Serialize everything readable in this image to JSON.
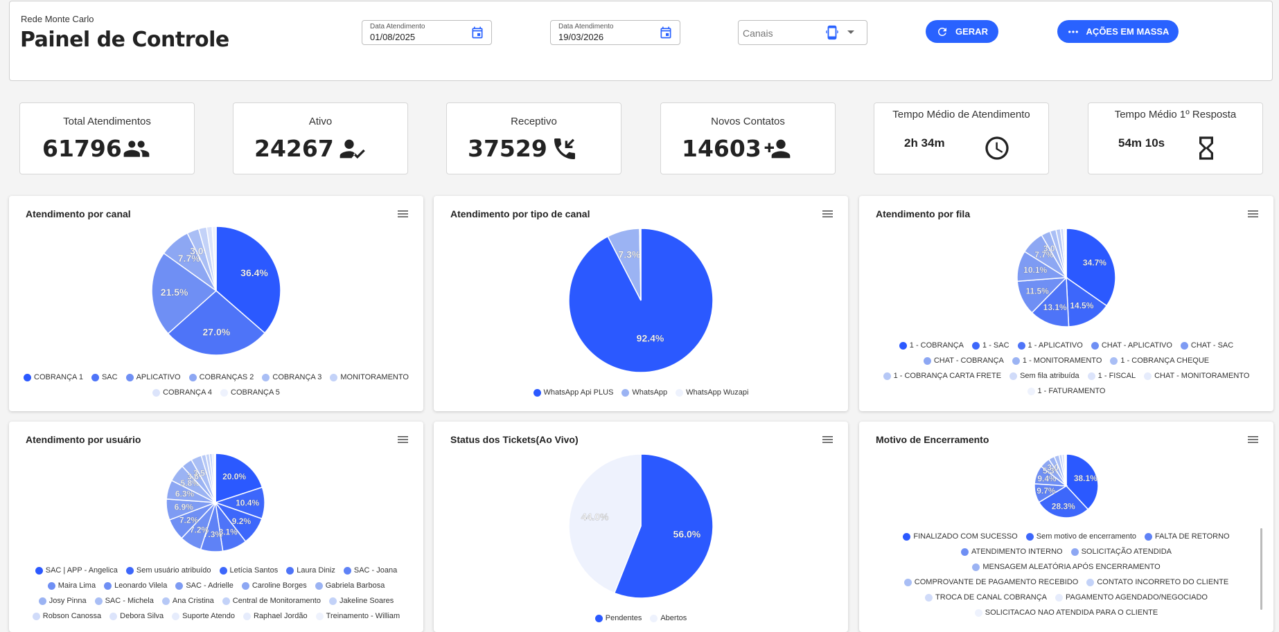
{
  "header": {
    "company": "Rede Monte Carlo",
    "title": "Painel de Controle",
    "date_start": {
      "label": "Data Atendimento",
      "value": "01/08/2025"
    },
    "date_end": {
      "label": "Data Atendimento",
      "value": "19/03/2026"
    },
    "channels": {
      "placeholder": "Canais"
    },
    "generate_label": "GERAR",
    "bulk_actions_label": "AÇÕES EM MASSA"
  },
  "kpis": [
    {
      "title": "Total Atendimentos",
      "value": "61796",
      "icon": "group-icon"
    },
    {
      "title": "Ativo",
      "value": "24267",
      "icon": "person-check-icon"
    },
    {
      "title": "Receptivo",
      "value": "37529",
      "icon": "phone-incoming-icon"
    },
    {
      "title": "Novos Contatos",
      "value": "14603",
      "icon": "person-add-icon"
    },
    {
      "title": "Tempo Médio de Atendimento",
      "value": "2h 34m",
      "icon": "clock-icon"
    },
    {
      "title": "Tempo Médio 1º Resposta",
      "value": "54m 10s",
      "icon": "hourglass-icon"
    }
  ],
  "chart_data": [
    {
      "type": "pie",
      "title": "Atendimento por canal",
      "categories": [
        "COBRANÇA 1",
        "SAC",
        "APLICATIVO",
        "COBRANÇAS 2",
        "COBRANÇA 3",
        "MONITORAMENTO",
        "COBRANÇA 4",
        "COBRANÇA 5"
      ],
      "values": [
        36.4,
        27.0,
        21.5,
        7.7,
        3.0,
        2.0,
        1.4,
        1.0
      ],
      "labels": [
        "36.4%",
        "27.0%",
        "21.5%",
        "7.7%",
        "3.0%",
        "",
        "",
        ""
      ],
      "legend": "bottom"
    },
    {
      "type": "pie",
      "title": "Atendimento por tipo de canal",
      "categories": [
        "WhatsApp Api PLUS",
        "WhatsApp",
        "WhatsApp Wuzapi"
      ],
      "values": [
        92.4,
        7.3,
        0.3
      ],
      "labels": [
        "92.4%",
        "7.3%",
        ""
      ],
      "legend": "bottom"
    },
    {
      "type": "pie",
      "title": "Atendimento por fila",
      "categories": [
        "1 - COBRANÇA",
        "1 - SAC",
        "1 - APLICATIVO",
        "CHAT - APLICATIVO",
        "CHAT - SAC",
        "CHAT - COBRANÇA",
        "1 - MONITORAMENTO",
        "1 - COBRANÇA CHEQUE",
        "1 - COBRANÇA CARTA FRETE",
        "Sem fila atribuída",
        "1 - FISCAL",
        "CHAT - MONITORAMENTO",
        "1 - FATURAMENTO"
      ],
      "values": [
        34.7,
        14.5,
        13.1,
        11.5,
        10.1,
        7.7,
        3.0,
        2.0,
        1.5,
        1.0,
        0.5,
        0.3,
        0.1
      ],
      "labels": [
        "34.7%",
        "14.5%",
        "13.1%",
        "11.5%",
        "10.1%",
        "7.7%",
        "3.0%",
        "",
        "",
        "",
        "",
        "",
        ""
      ],
      "legend": "bottom"
    },
    {
      "type": "pie",
      "title": "Atendimento por usuário",
      "categories": [
        "SAC | APP - Angelica",
        "Sem usuário atribuído",
        "Letícia Santos",
        "Laura Diniz",
        "SAC - Joana",
        "Maira Lima",
        "Leonardo Vilela",
        "SAC - Adrielle",
        "Caroline Borges",
        "Gabriela Barbosa",
        "Josy Pinna",
        "SAC - Michela",
        "Ana Cristina",
        "Central de Monitoramento",
        "Jakeline Soares",
        "Robson Canossa",
        "Debora Silva",
        "Suporte Atendo",
        "Raphael Jordão",
        "Treinamento - William"
      ],
      "values": [
        20.0,
        10.4,
        9.2,
        8.1,
        7.3,
        7.2,
        7.2,
        6.9,
        6.3,
        5.8,
        3.6,
        3.5,
        1.5,
        1.2,
        0.9,
        0.6,
        0.4,
        0.1,
        0.0,
        0.0
      ],
      "labels": [
        "20.0%",
        "10.4%",
        "9.2%",
        "8.1%",
        "7.3%",
        "7.2%",
        "7.2%",
        "6.9%",
        "6.3%",
        "5.8%",
        "3.6%",
        "3.5%",
        "",
        "",
        "",
        "",
        "",
        "",
        "",
        ""
      ],
      "legend": "bottom"
    },
    {
      "type": "pie",
      "title": "Status dos Tickets(Ao Vivo)",
      "categories": [
        "Pendentes",
        "Abertos"
      ],
      "values": [
        56.0,
        44.0
      ],
      "labels": [
        "56.0%",
        "44.0%"
      ],
      "legend": "bottom"
    },
    {
      "type": "pie",
      "title": "Motivo de Encerramento",
      "categories": [
        "FINALIZADO COM SUCESSO",
        "Sem motivo de encerramento",
        "FALTA DE RETORNO",
        "ATENDIMENTO INTERNO",
        "SOLICITAÇÃO ATENDIDA",
        "MENSAGEM ALEATÓRIA APÓS ENCERRAMENTO",
        "COMPROVANTE DE PAGAMENTO RECEBIDO",
        "CONTATO INCORRETO DO CLIENTE",
        "TROCA DE CANAL COBRANÇA",
        "PAGAMENTO AGENDADO/NEGOCIADO",
        "SOLICITACAO NAO ATENDIDA PARA O CLIENTE"
      ],
      "values": [
        38.1,
        28.3,
        9.7,
        9.4,
        5.3,
        3.0,
        2.5,
        1.5,
        1.2,
        0.7,
        0.3
      ],
      "labels": [
        "38.1%",
        "28.3%",
        "9.7%",
        "9.4%",
        "5.3%",
        "3.0%",
        "",
        "",
        "",
        "",
        ""
      ],
      "legend": "bottom"
    }
  ],
  "palette": [
    "#2b59ff",
    "#3d67fb",
    "#4e74f8",
    "#5f82f6",
    "#6f8ff4",
    "#7e9bf3",
    "#8da7f3",
    "#9bb3f3",
    "#a9bef5",
    "#b6c8f6",
    "#c3d2f8",
    "#d0dbf9",
    "#dce4fb",
    "#e6ecfc",
    "#eef2fd"
  ]
}
